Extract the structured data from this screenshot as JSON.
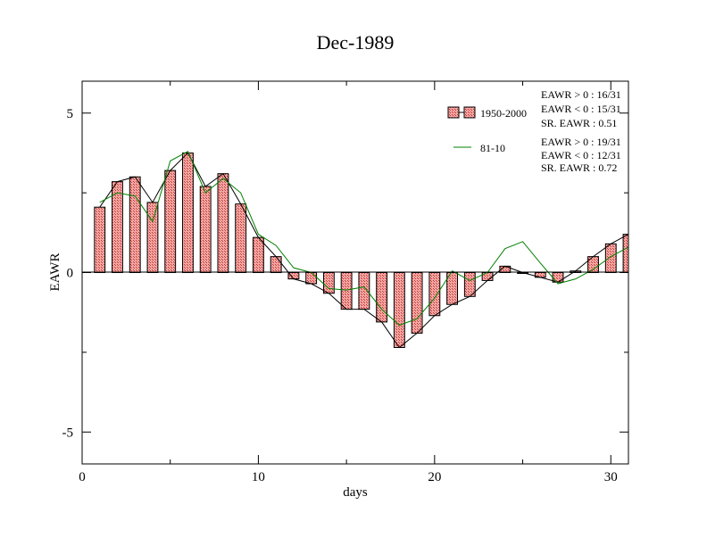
{
  "chart_data": {
    "type": "bar",
    "title": "Dec-1989",
    "xlabel": "days",
    "ylabel": "EAWR",
    "xlim": [
      0,
      31
    ],
    "ylim": [
      -6,
      6
    ],
    "x_ticks": [
      0,
      10,
      20,
      30
    ],
    "y_ticks": [
      -5,
      0,
      5
    ],
    "grid": false,
    "legend_position": "top-right",
    "colors": {
      "bar_fill": "#f4a6a6",
      "bar_stroke": "#000000",
      "climatology_line": "#008000",
      "outline_line": "#000000"
    },
    "x": [
      1,
      2,
      3,
      4,
      5,
      6,
      7,
      8,
      9,
      10,
      11,
      12,
      13,
      14,
      15,
      16,
      17,
      18,
      19,
      20,
      21,
      22,
      23,
      24,
      25,
      26,
      27,
      28,
      29,
      30,
      31
    ],
    "series": [
      {
        "name": "1950-2000",
        "type": "bar",
        "values": [
          2.05,
          2.85,
          3.0,
          2.2,
          3.2,
          3.75,
          2.7,
          3.1,
          2.15,
          1.1,
          0.5,
          -0.2,
          -0.35,
          -0.65,
          -1.15,
          -1.15,
          -1.55,
          -2.35,
          -1.9,
          -1.35,
          -1.0,
          -0.75,
          -0.25,
          0.2,
          0.0,
          -0.15,
          -0.3,
          0.05,
          0.5,
          0.9,
          1.2
        ]
      },
      {
        "name": "81-10",
        "type": "line",
        "values": [
          2.2,
          2.5,
          2.4,
          1.6,
          3.5,
          3.8,
          2.5,
          2.95,
          2.5,
          1.2,
          0.85,
          0.15,
          0.0,
          -0.5,
          -0.55,
          -0.45,
          -1.15,
          -1.65,
          -1.45,
          -0.8,
          0.05,
          -0.25,
          0.0,
          0.75,
          0.97,
          0.3,
          -0.35,
          -0.2,
          0.1,
          0.5,
          0.8
        ]
      }
    ],
    "legend": [
      {
        "label": "1950-2000",
        "stats": [
          "EAWR > 0 : 16/31",
          "EAWR < 0 : 15/31",
          "SR. EAWR :  0.51"
        ]
      },
      {
        "label": "81-10",
        "stats": [
          "EAWR > 0 : 19/31",
          "EAWR < 0 : 12/31",
          "SR. EAWR :  0.72"
        ]
      }
    ]
  }
}
